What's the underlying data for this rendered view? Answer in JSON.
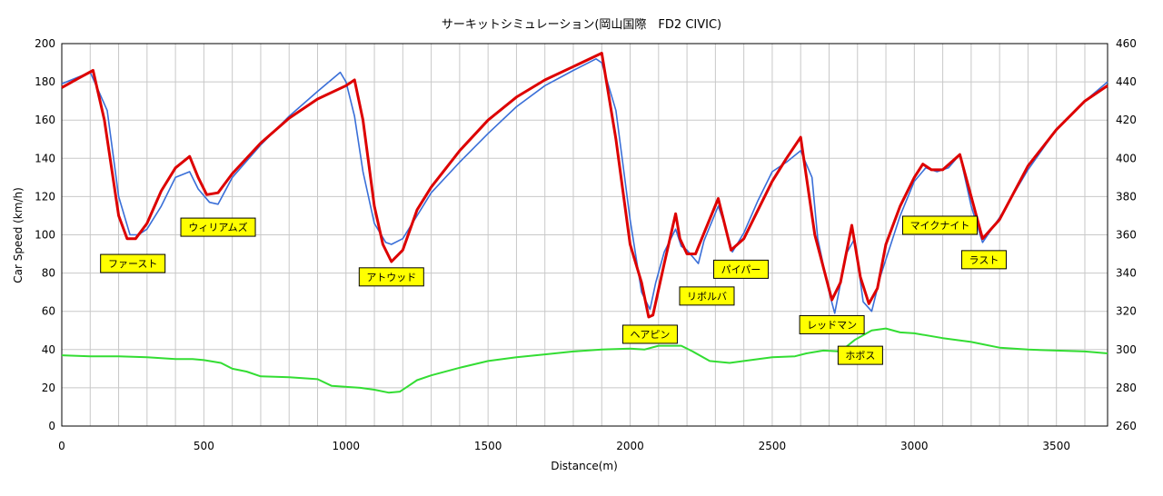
{
  "chart_data": {
    "type": "line",
    "title": "サーキットシミュレーション(岡山国際　FD2 CIVIC)",
    "xlabel": "Distance(m)",
    "ylabel": "Car Speed (km/h)",
    "xlim": [
      0,
      3680
    ],
    "ylim": [
      0,
      200
    ],
    "y2lim": [
      260,
      460
    ],
    "x_ticks": [
      0,
      500,
      1000,
      1500,
      2000,
      2500,
      3000,
      3500
    ],
    "x_grid_step": 100,
    "y_ticks": [
      0,
      20,
      40,
      60,
      80,
      100,
      120,
      140,
      160,
      180,
      200
    ],
    "y2_ticks": [
      260,
      280,
      300,
      320,
      340,
      360,
      380,
      400,
      420,
      440,
      460
    ],
    "grid": true,
    "colors": {
      "sim": "#dd0000",
      "measured": "#3a6fd8",
      "elevation": "#33dd33",
      "label_bg": "#ffff00"
    },
    "series": [
      {
        "name": "",
        "axis": "left",
        "color": "#dd0000",
        "x": [
          0,
          60,
          110,
          150,
          200,
          230,
          260,
          300,
          350,
          400,
          450,
          480,
          510,
          550,
          600,
          700,
          800,
          900,
          1000,
          1030,
          1060,
          1100,
          1130,
          1160,
          1200,
          1250,
          1300,
          1400,
          1500,
          1600,
          1700,
          1800,
          1900,
          1950,
          2000,
          2040,
          2065,
          2080,
          2120,
          2160,
          2175,
          2200,
          2230,
          2260,
          2310,
          2355,
          2400,
          2450,
          2500,
          2550,
          2600,
          2650,
          2710,
          2740,
          2780,
          2810,
          2840,
          2870,
          2900,
          2950,
          3000,
          3030,
          3060,
          3100,
          3160,
          3200,
          3240,
          3300,
          3400,
          3500,
          3600,
          3680
        ],
        "values": [
          177,
          182,
          186,
          160,
          110,
          98,
          98,
          106,
          123,
          135,
          141,
          130,
          121,
          122,
          132,
          148,
          161,
          171,
          178,
          181,
          160,
          115,
          95,
          86,
          92,
          113,
          125,
          144,
          160,
          172,
          181,
          188,
          195,
          150,
          95,
          75,
          57,
          58,
          85,
          111,
          98,
          90,
          90,
          101,
          119,
          92,
          98,
          113,
          128,
          140,
          151,
          100,
          66,
          75,
          105,
          78,
          64,
          72,
          95,
          115,
          130,
          137,
          134,
          134,
          142,
          120,
          98,
          108,
          136,
          155,
          170,
          178
        ]
      },
      {
        "name": "",
        "axis": "left",
        "color": "#3a6fd8",
        "x": [
          0,
          50,
          100,
          130,
          160,
          200,
          240,
          270,
          300,
          350,
          400,
          450,
          480,
          520,
          550,
          600,
          700,
          800,
          900,
          980,
          1000,
          1030,
          1060,
          1100,
          1140,
          1160,
          1200,
          1250,
          1300,
          1400,
          1500,
          1600,
          1700,
          1800,
          1880,
          1900,
          1950,
          2000,
          2040,
          2070,
          2090,
          2120,
          2160,
          2180,
          2200,
          2240,
          2260,
          2310,
          2340,
          2360,
          2400,
          2450,
          2500,
          2550,
          2600,
          2640,
          2660,
          2700,
          2720,
          2760,
          2790,
          2820,
          2850,
          2880,
          2950,
          3000,
          3040,
          3080,
          3120,
          3160,
          3200,
          3240,
          3300,
          3400,
          3500,
          3600,
          3680
        ],
        "values": [
          179,
          182,
          185,
          175,
          165,
          120,
          100,
          100,
          103,
          115,
          130,
          133,
          124,
          117,
          116,
          130,
          147,
          162,
          175,
          185,
          180,
          162,
          133,
          106,
          96,
          95,
          98,
          110,
          122,
          138,
          153,
          167,
          178,
          186,
          192,
          190,
          165,
          108,
          70,
          61,
          75,
          91,
          103,
          94,
          92,
          85,
          97,
          115,
          102,
          91,
          101,
          118,
          133,
          138,
          144,
          130,
          98,
          70,
          59,
          90,
          98,
          65,
          60,
          78,
          110,
          128,
          135,
          133,
          135,
          142,
          115,
          96,
          109,
          134,
          155,
          170,
          180
        ]
      },
      {
        "name": "",
        "axis": "right",
        "color": "#33dd33",
        "x": [
          0,
          100,
          200,
          300,
          400,
          460,
          500,
          560,
          600,
          650,
          700,
          800,
          900,
          950,
          1050,
          1100,
          1150,
          1190,
          1220,
          1250,
          1300,
          1400,
          1500,
          1600,
          1700,
          1800,
          1900,
          2000,
          2050,
          2100,
          2150,
          2180,
          2220,
          2280,
          2350,
          2400,
          2500,
          2580,
          2620,
          2680,
          2740,
          2790,
          2850,
          2900,
          2950,
          3000,
          3100,
          3200,
          3300,
          3400,
          3500,
          3600,
          3680
        ],
        "values": [
          297,
          296.5,
          296.5,
          296,
          295,
          295,
          294.5,
          293,
          290,
          288.5,
          286,
          285.5,
          284.5,
          281,
          280,
          279,
          277.5,
          278,
          281,
          284,
          286.5,
          290.5,
          294,
          296,
          297.5,
          299,
          300,
          300.5,
          300,
          302,
          302,
          302,
          299,
          294,
          293,
          294,
          296,
          296.5,
          298,
          299.5,
          299,
          305,
          310,
          311,
          309,
          308.5,
          306,
          304,
          301,
          300,
          299.5,
          299,
          298
        ]
      }
    ],
    "annotations": [
      {
        "text": "ファースト",
        "x": 250,
        "y": 85
      },
      {
        "text": "ウィリアムズ",
        "x": 550,
        "y": 104
      },
      {
        "text": "アトウッド",
        "x": 1160,
        "y": 78
      },
      {
        "text": "ヘアピン",
        "x": 2070,
        "y": 48
      },
      {
        "text": "リボルバ",
        "x": 2270,
        "y": 68
      },
      {
        "text": "パイパー",
        "x": 2390,
        "y": 82
      },
      {
        "text": "レッドマン",
        "x": 2710,
        "y": 53
      },
      {
        "text": "ホボス",
        "x": 2810,
        "y": 37
      },
      {
        "text": "マイクナイト",
        "x": 3090,
        "y": 105
      },
      {
        "text": "ラスト",
        "x": 3245,
        "y": 87
      }
    ]
  }
}
